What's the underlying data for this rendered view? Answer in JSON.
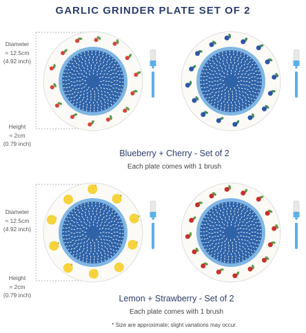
{
  "title": "GARLIC GRINDER PLATE SET OF 2",
  "sections": [
    {
      "diameter": {
        "label": "Diameter",
        "metric": "≈ 12.5cm",
        "imperial": "(4.92 inch)"
      },
      "height": {
        "label": "Height",
        "metric": "≈ 2cm",
        "imperial": "(0.79 inch)"
      },
      "caption": "Blueberry + Cherry - Set of 2",
      "note": "Each plate comes with 1 brush"
    },
    {
      "diameter": {
        "label": "Diameter",
        "metric": "≈ 12.5cm",
        "imperial": "(4.92 inch)"
      },
      "height": {
        "label": "Height",
        "metric": "≈ 2cm",
        "imperial": "(0.79 inch)"
      },
      "caption": "Lemon + Strawberry - Set of 2",
      "note": "Each plate comes with 1 brush"
    }
  ],
  "footnote": "* Size are approximate; slight variations may occur."
}
